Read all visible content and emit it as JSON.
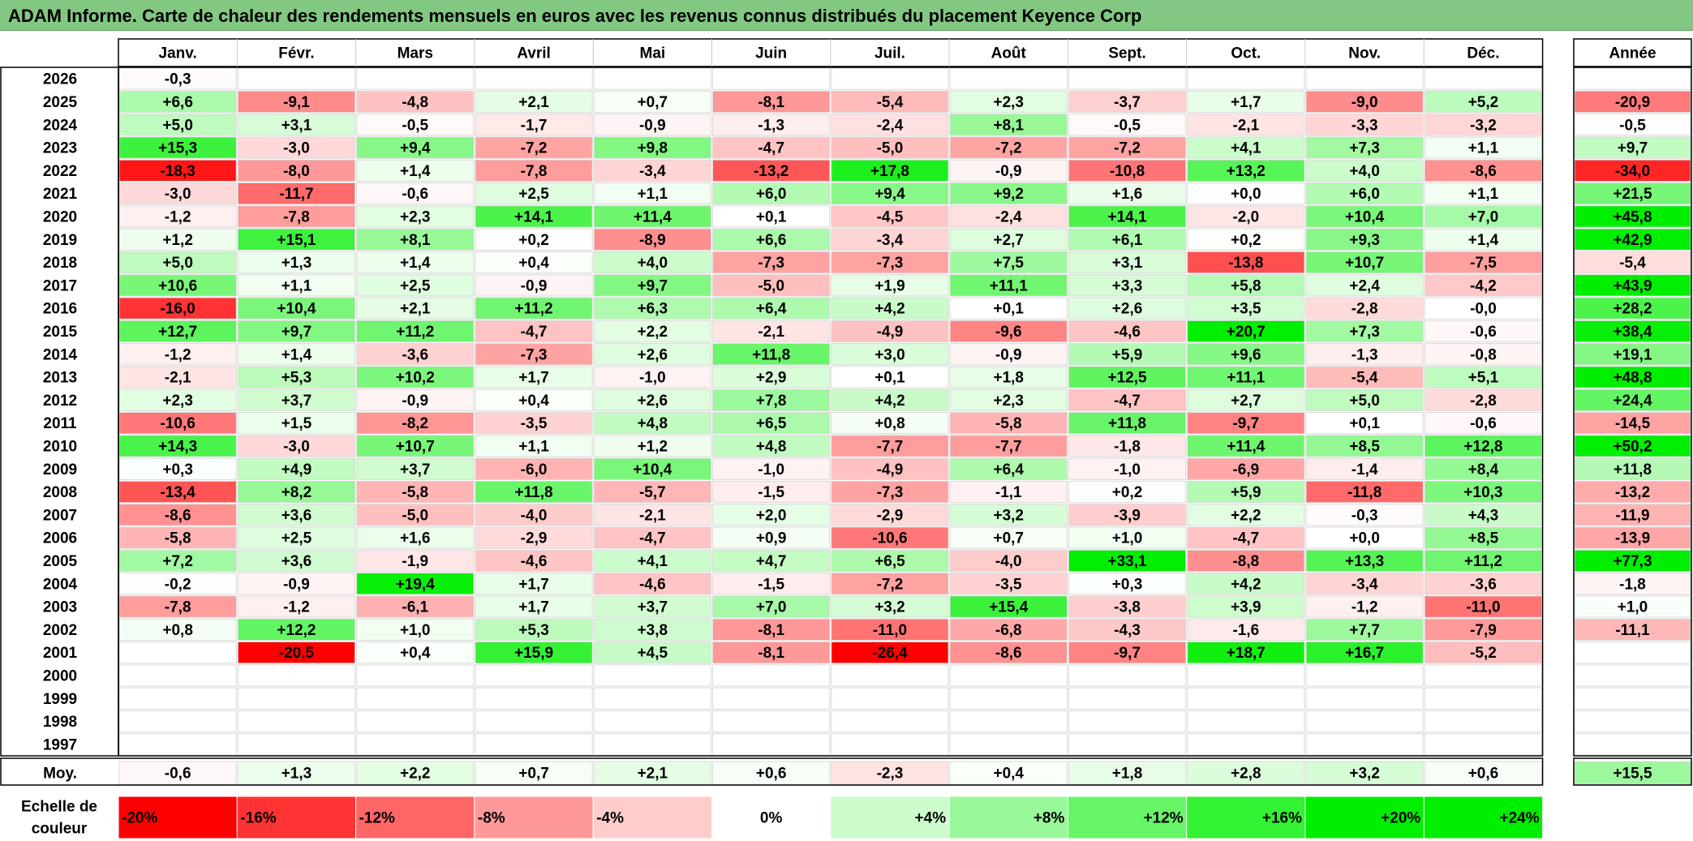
{
  "title": "ADAM Informe. Carte de chaleur des rendements mensuels en euros avec les revenus connus distribués du placement Keyence Corp",
  "year_header": "Année",
  "avg_label": "Moy.",
  "scale_label_line1": "Echelle de",
  "scale_label_line2": "couleur",
  "colors": {
    "title_bg": "#82c882",
    "neg_max": "#ff0000",
    "pos_max": "#00ee00",
    "zero": "#ffffff"
  },
  "chart_data": {
    "type": "heatmap",
    "title": "ADAM Informe. Carte de chaleur des rendements mensuels en euros avec les revenus connus distribués du placement Keyence Corp",
    "months": [
      "Janv.",
      "Févr.",
      "Mars",
      "Avril",
      "Mai",
      "Juin",
      "Juil.",
      "Août",
      "Sept.",
      "Oct.",
      "Nov.",
      "Déc."
    ],
    "rows": [
      {
        "year": "2026",
        "values": [
          "-0,3",
          "",
          "",
          "",
          "",
          "",
          "",
          "",
          "",
          "",
          "",
          ""
        ],
        "annual": ""
      },
      {
        "year": "2025",
        "values": [
          "+6,6",
          "-9,1",
          "-4,8",
          "+2,1",
          "+0,7",
          "-8,1",
          "-5,4",
          "+2,3",
          "-3,7",
          "+1,7",
          "-9,0",
          "+5,2"
        ],
        "annual": "-20,9"
      },
      {
        "year": "2024",
        "values": [
          "+5,0",
          "+3,1",
          "-0,5",
          "-1,7",
          "-0,9",
          "-1,3",
          "-2,4",
          "+8,1",
          "-0,5",
          "-2,1",
          "-3,3",
          "-3,2"
        ],
        "annual": "-0,5"
      },
      {
        "year": "2023",
        "values": [
          "+15,3",
          "-3,0",
          "+9,4",
          "-7,2",
          "+9,8",
          "-4,7",
          "-5,0",
          "-7,2",
          "-7,2",
          "+4,1",
          "+7,3",
          "+1,1"
        ],
        "annual": "+9,7"
      },
      {
        "year": "2022",
        "values": [
          "-18,3",
          "-8,0",
          "+1,4",
          "-7,8",
          "-3,4",
          "-13,2",
          "+17,8",
          "-0,9",
          "-10,8",
          "+13,2",
          "+4,0",
          "-8,6"
        ],
        "annual": "-34,0"
      },
      {
        "year": "2021",
        "values": [
          "-3,0",
          "-11,7",
          "-0,6",
          "+2,5",
          "+1,1",
          "+6,0",
          "+9,4",
          "+9,2",
          "+1,6",
          "+0,0",
          "+6,0",
          "+1,1"
        ],
        "annual": "+21,5"
      },
      {
        "year": "2020",
        "values": [
          "-1,2",
          "-7,8",
          "+2,3",
          "+14,1",
          "+11,4",
          "+0,1",
          "-4,5",
          "-2,4",
          "+14,1",
          "-2,0",
          "+10,4",
          "+7,0"
        ],
        "annual": "+45,8"
      },
      {
        "year": "2019",
        "values": [
          "+1,2",
          "+15,1",
          "+8,1",
          "+0,2",
          "-8,9",
          "+6,6",
          "-3,4",
          "+2,7",
          "+6,1",
          "+0,2",
          "+9,3",
          "+1,4"
        ],
        "annual": "+42,9"
      },
      {
        "year": "2018",
        "values": [
          "+5,0",
          "+1,3",
          "+1,4",
          "+0,4",
          "+4,0",
          "-7,3",
          "-7,3",
          "+7,5",
          "+3,1",
          "-13,8",
          "+10,7",
          "-7,5"
        ],
        "annual": "-5,4"
      },
      {
        "year": "2017",
        "values": [
          "+10,6",
          "+1,1",
          "+2,5",
          "-0,9",
          "+9,7",
          "-5,0",
          "+1,9",
          "+11,1",
          "+3,3",
          "+5,8",
          "+2,4",
          "-4,2"
        ],
        "annual": "+43,9"
      },
      {
        "year": "2016",
        "values": [
          "-16,0",
          "+10,4",
          "+2,1",
          "+11,2",
          "+6,3",
          "+6,4",
          "+4,2",
          "+0,1",
          "+2,6",
          "+3,5",
          "-2,8",
          "-0,0"
        ],
        "annual": "+28,2"
      },
      {
        "year": "2015",
        "values": [
          "+12,7",
          "+9,7",
          "+11,2",
          "-4,7",
          "+2,2",
          "-2,1",
          "-4,9",
          "-9,6",
          "-4,6",
          "+20,7",
          "+7,3",
          "-0,6"
        ],
        "annual": "+38,4"
      },
      {
        "year": "2014",
        "values": [
          "-1,2",
          "+1,4",
          "-3,6",
          "-7,3",
          "+2,6",
          "+11,8",
          "+3,0",
          "-0,9",
          "+5,9",
          "+9,6",
          "-1,3",
          "-0,8"
        ],
        "annual": "+19,1"
      },
      {
        "year": "2013",
        "values": [
          "-2,1",
          "+5,3",
          "+10,2",
          "+1,7",
          "-1,0",
          "+2,9",
          "+0,1",
          "+1,8",
          "+12,5",
          "+11,1",
          "-5,4",
          "+5,1"
        ],
        "annual": "+48,8"
      },
      {
        "year": "2012",
        "values": [
          "+2,3",
          "+3,7",
          "-0,9",
          "+0,4",
          "+2,6",
          "+7,8",
          "+4,2",
          "+2,3",
          "-4,7",
          "+2,7",
          "+5,0",
          "-2,8"
        ],
        "annual": "+24,4"
      },
      {
        "year": "2011",
        "values": [
          "-10,6",
          "+1,5",
          "-8,2",
          "-3,5",
          "+4,8",
          "+6,5",
          "+0,8",
          "-5,8",
          "+11,8",
          "-9,7",
          "+0,1",
          "-0,6"
        ],
        "annual": "-14,5"
      },
      {
        "year": "2010",
        "values": [
          "+14,3",
          "-3,0",
          "+10,7",
          "+1,1",
          "+1,2",
          "+4,8",
          "-7,7",
          "-7,7",
          "-1,8",
          "+11,4",
          "+8,5",
          "+12,8"
        ],
        "annual": "+50,2"
      },
      {
        "year": "2009",
        "values": [
          "+0,3",
          "+4,9",
          "+3,7",
          "-6,0",
          "+10,4",
          "-1,0",
          "-4,9",
          "+6,4",
          "-1,0",
          "-6,9",
          "-1,4",
          "+8,4"
        ],
        "annual": "+11,8"
      },
      {
        "year": "2008",
        "values": [
          "-13,4",
          "+8,2",
          "-5,8",
          "+11,8",
          "-5,7",
          "-1,5",
          "-7,3",
          "-1,1",
          "+0,2",
          "+5,9",
          "-11,8",
          "+10,3"
        ],
        "annual": "-13,2"
      },
      {
        "year": "2007",
        "values": [
          "-8,6",
          "+3,6",
          "-5,0",
          "-4,0",
          "-2,1",
          "+2,0",
          "-2,9",
          "+3,2",
          "-3,9",
          "+2,2",
          "-0,3",
          "+4,3"
        ],
        "annual": "-11,9"
      },
      {
        "year": "2006",
        "values": [
          "-5,8",
          "+2,5",
          "+1,6",
          "-2,9",
          "-4,7",
          "+0,9",
          "-10,6",
          "+0,7",
          "+1,0",
          "-4,7",
          "+0,0",
          "+8,5"
        ],
        "annual": "-13,9"
      },
      {
        "year": "2005",
        "values": [
          "+7,2",
          "+3,6",
          "-1,9",
          "-4,6",
          "+4,1",
          "+4,7",
          "+6,5",
          "-4,0",
          "+33,1",
          "-8,8",
          "+13,3",
          "+11,2"
        ],
        "annual": "+77,3"
      },
      {
        "year": "2004",
        "values": [
          "-0,2",
          "-0,9",
          "+19,4",
          "+1,7",
          "-4,6",
          "-1,5",
          "-7,2",
          "-3,5",
          "+0,3",
          "+4,2",
          "-3,4",
          "-3,6"
        ],
        "annual": "-1,8"
      },
      {
        "year": "2003",
        "values": [
          "-7,8",
          "-1,2",
          "-6,1",
          "+1,7",
          "+3,7",
          "+7,0",
          "+3,2",
          "+15,4",
          "-3,8",
          "+3,9",
          "-1,2",
          "-11,0"
        ],
        "annual": "+1,0"
      },
      {
        "year": "2002",
        "values": [
          "+0,8",
          "+12,2",
          "+1,0",
          "+5,3",
          "+3,8",
          "-8,1",
          "-11,0",
          "-6,8",
          "-4,3",
          "-1,6",
          "+7,7",
          "-7,9"
        ],
        "annual": "-11,1"
      },
      {
        "year": "2001",
        "values": [
          "",
          "-20,5",
          "+0,4",
          "+15,9",
          "+4,5",
          "-8,1",
          "-26,4",
          "-8,6",
          "-9,7",
          "+18,7",
          "+16,7",
          "-5,2"
        ],
        "annual": ""
      },
      {
        "year": "2000",
        "values": [
          "",
          "",
          "",
          "",
          "",
          "",
          "",
          "",
          "",
          "",
          "",
          ""
        ],
        "annual": ""
      },
      {
        "year": "1999",
        "values": [
          "",
          "",
          "",
          "",
          "",
          "",
          "",
          "",
          "",
          "",
          "",
          ""
        ],
        "annual": ""
      },
      {
        "year": "1998",
        "values": [
          "",
          "",
          "",
          "",
          "",
          "",
          "",
          "",
          "",
          "",
          "",
          ""
        ],
        "annual": ""
      },
      {
        "year": "1997",
        "values": [
          "",
          "",
          "",
          "",
          "",
          "",
          "",
          "",
          "",
          "",
          "",
          ""
        ],
        "annual": ""
      }
    ],
    "averages": [
      "-0,6",
      "+1,3",
      "+2,2",
      "+0,7",
      "+2,1",
      "+0,6",
      "-2,3",
      "+0,4",
      "+1,8",
      "+2,8",
      "+3,2",
      "+0,6"
    ],
    "average_annual": "+15,5",
    "color_scale": [
      "-20%",
      "-16%",
      "-12%",
      "-8%",
      "-4%",
      "0%",
      "+4%",
      "+8%",
      "+12%",
      "+16%",
      "+20%",
      "+24%"
    ]
  }
}
